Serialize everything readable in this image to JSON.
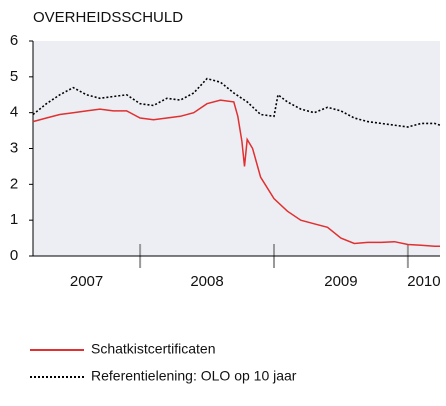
{
  "chart_data": {
    "type": "line",
    "title": "OVERHEIDSSCHULD",
    "xlim": [
      2007.2,
      2010.24
    ],
    "xticks": [
      2008,
      2009,
      2010
    ],
    "year_labels": [
      "2007",
      "2008",
      "2009",
      "2010"
    ],
    "ylim": [
      0,
      6
    ],
    "yticks": [
      0,
      1,
      2,
      3,
      4,
      5,
      6
    ],
    "legend": "bottom",
    "series": [
      {
        "name": "Schatkistcertificaten",
        "color": "#e03030",
        "style": "solid",
        "x": [
          2007.2,
          2007.3,
          2007.4,
          2007.5,
          2007.6,
          2007.7,
          2007.8,
          2007.9,
          2008.0,
          2008.1,
          2008.2,
          2008.3,
          2008.4,
          2008.5,
          2008.6,
          2008.7,
          2008.73,
          2008.76,
          2008.78,
          2008.8,
          2008.84,
          2008.9,
          2009.0,
          2009.1,
          2009.2,
          2009.3,
          2009.4,
          2009.5,
          2009.6,
          2009.7,
          2009.8,
          2009.9,
          2010.0,
          2010.1,
          2010.2,
          2010.24
        ],
        "values": [
          3.75,
          3.85,
          3.95,
          4.0,
          4.05,
          4.1,
          4.05,
          4.05,
          3.85,
          3.8,
          3.85,
          3.9,
          4.0,
          4.25,
          4.35,
          4.3,
          3.9,
          3.2,
          2.5,
          3.25,
          3.0,
          2.2,
          1.6,
          1.25,
          1.0,
          0.9,
          0.8,
          0.5,
          0.35,
          0.38,
          0.38,
          0.4,
          0.32,
          0.3,
          0.27,
          0.27
        ]
      },
      {
        "name": "Referentielening: OLO op 10 jaar",
        "color": "#000000",
        "style": "dotted",
        "x": [
          2007.2,
          2007.3,
          2007.4,
          2007.5,
          2007.6,
          2007.7,
          2007.8,
          2007.9,
          2008.0,
          2008.1,
          2008.2,
          2008.3,
          2008.4,
          2008.5,
          2008.6,
          2008.7,
          2008.8,
          2008.9,
          2009.0,
          2009.03,
          2009.1,
          2009.2,
          2009.3,
          2009.4,
          2009.5,
          2009.6,
          2009.7,
          2009.8,
          2009.9,
          2010.0,
          2010.1,
          2010.2,
          2010.24
        ],
        "values": [
          3.95,
          4.25,
          4.5,
          4.7,
          4.5,
          4.4,
          4.45,
          4.5,
          4.25,
          4.2,
          4.4,
          4.35,
          4.55,
          4.95,
          4.85,
          4.55,
          4.3,
          3.95,
          3.9,
          4.5,
          4.3,
          4.1,
          4.0,
          4.15,
          4.05,
          3.85,
          3.75,
          3.7,
          3.65,
          3.6,
          3.7,
          3.7,
          3.65
        ]
      }
    ]
  }
}
